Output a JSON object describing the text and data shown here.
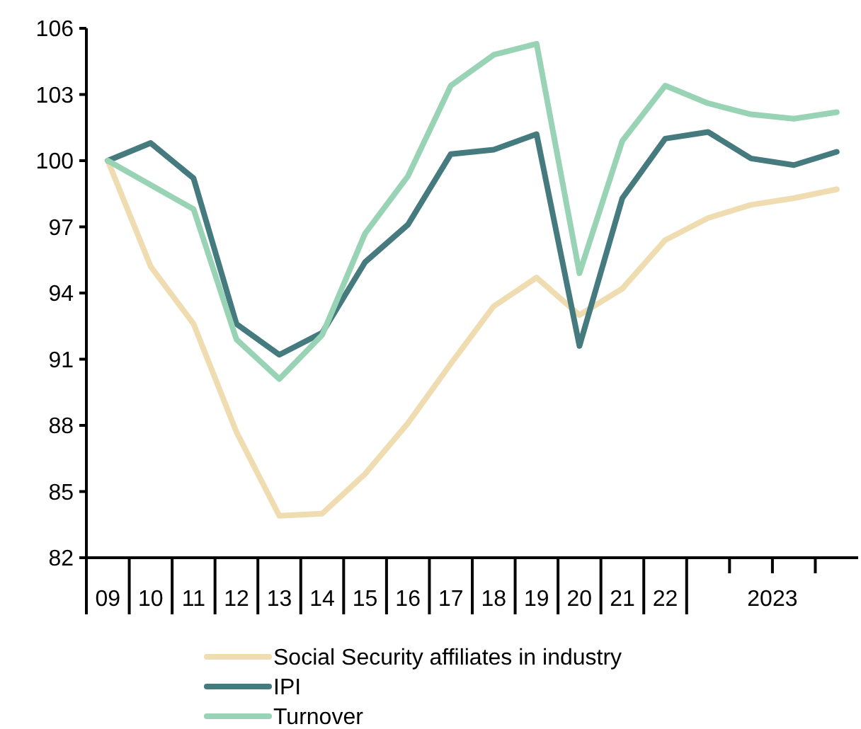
{
  "chart_data": {
    "type": "line",
    "categories": [
      "09",
      "10",
      "11",
      "12",
      "13",
      "14",
      "15",
      "16",
      "17",
      "18",
      "19",
      "20",
      "21",
      "22",
      null,
      null,
      null,
      null
    ],
    "series": [
      {
        "name": "Social Security affiliates in industry",
        "color": "#efdcb0",
        "values": [
          100,
          95.2,
          92.6,
          87.7,
          83.9,
          84.0,
          85.8,
          88.1,
          90.8,
          93.4,
          94.7,
          93.0,
          94.2,
          96.4,
          97.4,
          98.0,
          98.3,
          98.7
        ]
      },
      {
        "name": "IPI",
        "color": "#457b7f",
        "values": [
          100,
          100.8,
          99.2,
          92.6,
          91.2,
          92.2,
          95.4,
          97.1,
          100.3,
          100.5,
          101.2,
          91.6,
          98.3,
          101.0,
          101.3,
          100.1,
          99.8,
          100.4
        ]
      },
      {
        "name": "Turnover",
        "color": "#99d3b5",
        "values": [
          100,
          98.9,
          97.8,
          91.9,
          90.1,
          92.1,
          96.7,
          99.3,
          103.4,
          104.8,
          105.3,
          94.9,
          100.9,
          103.4,
          102.6,
          102.1,
          101.9,
          102.2
        ]
      }
    ],
    "ylim": [
      82,
      106
    ],
    "yticks": [
      82,
      85,
      88,
      91,
      94,
      97,
      100,
      103,
      106
    ],
    "annotations": [
      "2023"
    ],
    "legend": "bottom"
  }
}
